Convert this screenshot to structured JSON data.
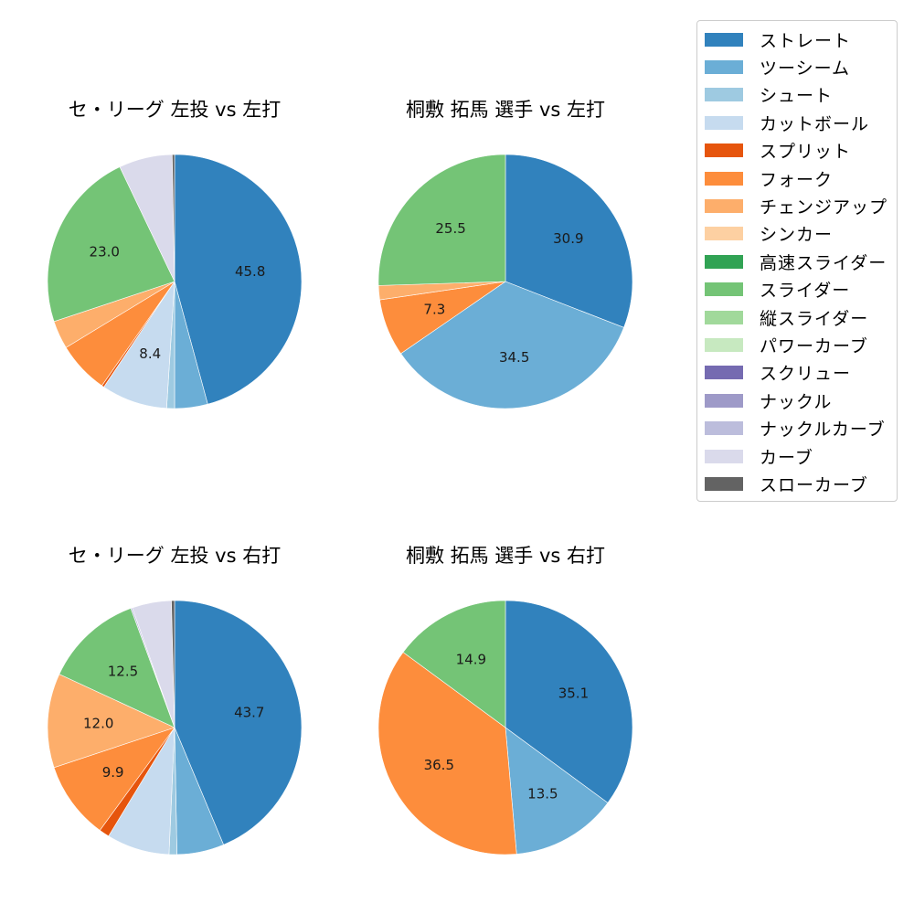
{
  "chart_data": [
    {
      "type": "pie",
      "title": "セ・リーグ 左投 vs 左打",
      "categories": [
        "ストレート",
        "ツーシーム",
        "シュート",
        "カットボール",
        "スプリット",
        "フォーク",
        "チェンジアップ",
        "スライダー",
        "カーブ",
        "スローカーブ"
      ],
      "values": [
        45.8,
        4.2,
        1.0,
        8.4,
        0.3,
        6.6,
        3.6,
        23.0,
        6.8,
        0.3
      ],
      "labels_shown": {
        "ストレート": "45.8",
        "カットボール": "8.4",
        "スライダー": "23.0"
      },
      "start_angle": 90,
      "direction": "clockwise"
    },
    {
      "type": "pie",
      "title": "桐敷 拓馬 選手 vs 左打",
      "categories": [
        "ストレート",
        "ツーシーム",
        "フォーク",
        "チェンジアップ",
        "スライダー"
      ],
      "values": [
        30.9,
        34.5,
        7.3,
        1.8,
        25.5
      ],
      "labels_shown": {
        "ストレート": "30.9",
        "ツーシーム": "34.5",
        "フォーク": "7.3",
        "スライダー": "25.5"
      },
      "start_angle": 90,
      "direction": "clockwise"
    },
    {
      "type": "pie",
      "title": "セ・リーグ 左投 vs 右打",
      "categories": [
        "ストレート",
        "ツーシーム",
        "シュート",
        "カットボール",
        "スプリット",
        "フォーク",
        "チェンジアップ",
        "スライダー",
        "ナックルカーブ",
        "カーブ",
        "スローカーブ"
      ],
      "values": [
        43.7,
        6.0,
        1.0,
        8.0,
        1.3,
        9.9,
        12.0,
        12.5,
        0.2,
        5.0,
        0.4
      ],
      "labels_shown": {
        "ストレート": "43.7",
        "フォーク": "9.9",
        "チェンジアップ": "12.0",
        "スライダー": "12.5"
      },
      "start_angle": 90,
      "direction": "clockwise"
    },
    {
      "type": "pie",
      "title": "桐敷 拓馬 選手 vs 右打",
      "categories": [
        "ストレート",
        "ツーシーム",
        "フォーク",
        "スライダー"
      ],
      "values": [
        35.1,
        13.5,
        36.5,
        14.9
      ],
      "labels_shown": {
        "ストレート": "35.1",
        "ツーシーム": "13.5",
        "フォーク": "36.5",
        "スライダー": "14.9"
      },
      "start_angle": 90,
      "direction": "clockwise"
    }
  ],
  "legend": {
    "position": "upper-right",
    "items": [
      {
        "label": "ストレート",
        "color": "#3182bd"
      },
      {
        "label": "ツーシーム",
        "color": "#6baed6"
      },
      {
        "label": "シュート",
        "color": "#9ecae1"
      },
      {
        "label": "カットボール",
        "color": "#c6dbef"
      },
      {
        "label": "スプリット",
        "color": "#e6550d"
      },
      {
        "label": "フォーク",
        "color": "#fd8d3c"
      },
      {
        "label": "チェンジアップ",
        "color": "#fdae6b"
      },
      {
        "label": "シンカー",
        "color": "#fdd0a2"
      },
      {
        "label": "高速スライダー",
        "color": "#31a354"
      },
      {
        "label": "スライダー",
        "color": "#74c476"
      },
      {
        "label": "縦スライダー",
        "color": "#a1d99b"
      },
      {
        "label": "パワーカーブ",
        "color": "#c7e9c0"
      },
      {
        "label": "スクリュー",
        "color": "#756bb1"
      },
      {
        "label": "ナックル",
        "color": "#9e9ac8"
      },
      {
        "label": "ナックルカーブ",
        "color": "#bcbddc"
      },
      {
        "label": "カーブ",
        "color": "#dadaeb"
      },
      {
        "label": "スローカーブ",
        "color": "#636363"
      }
    ]
  }
}
